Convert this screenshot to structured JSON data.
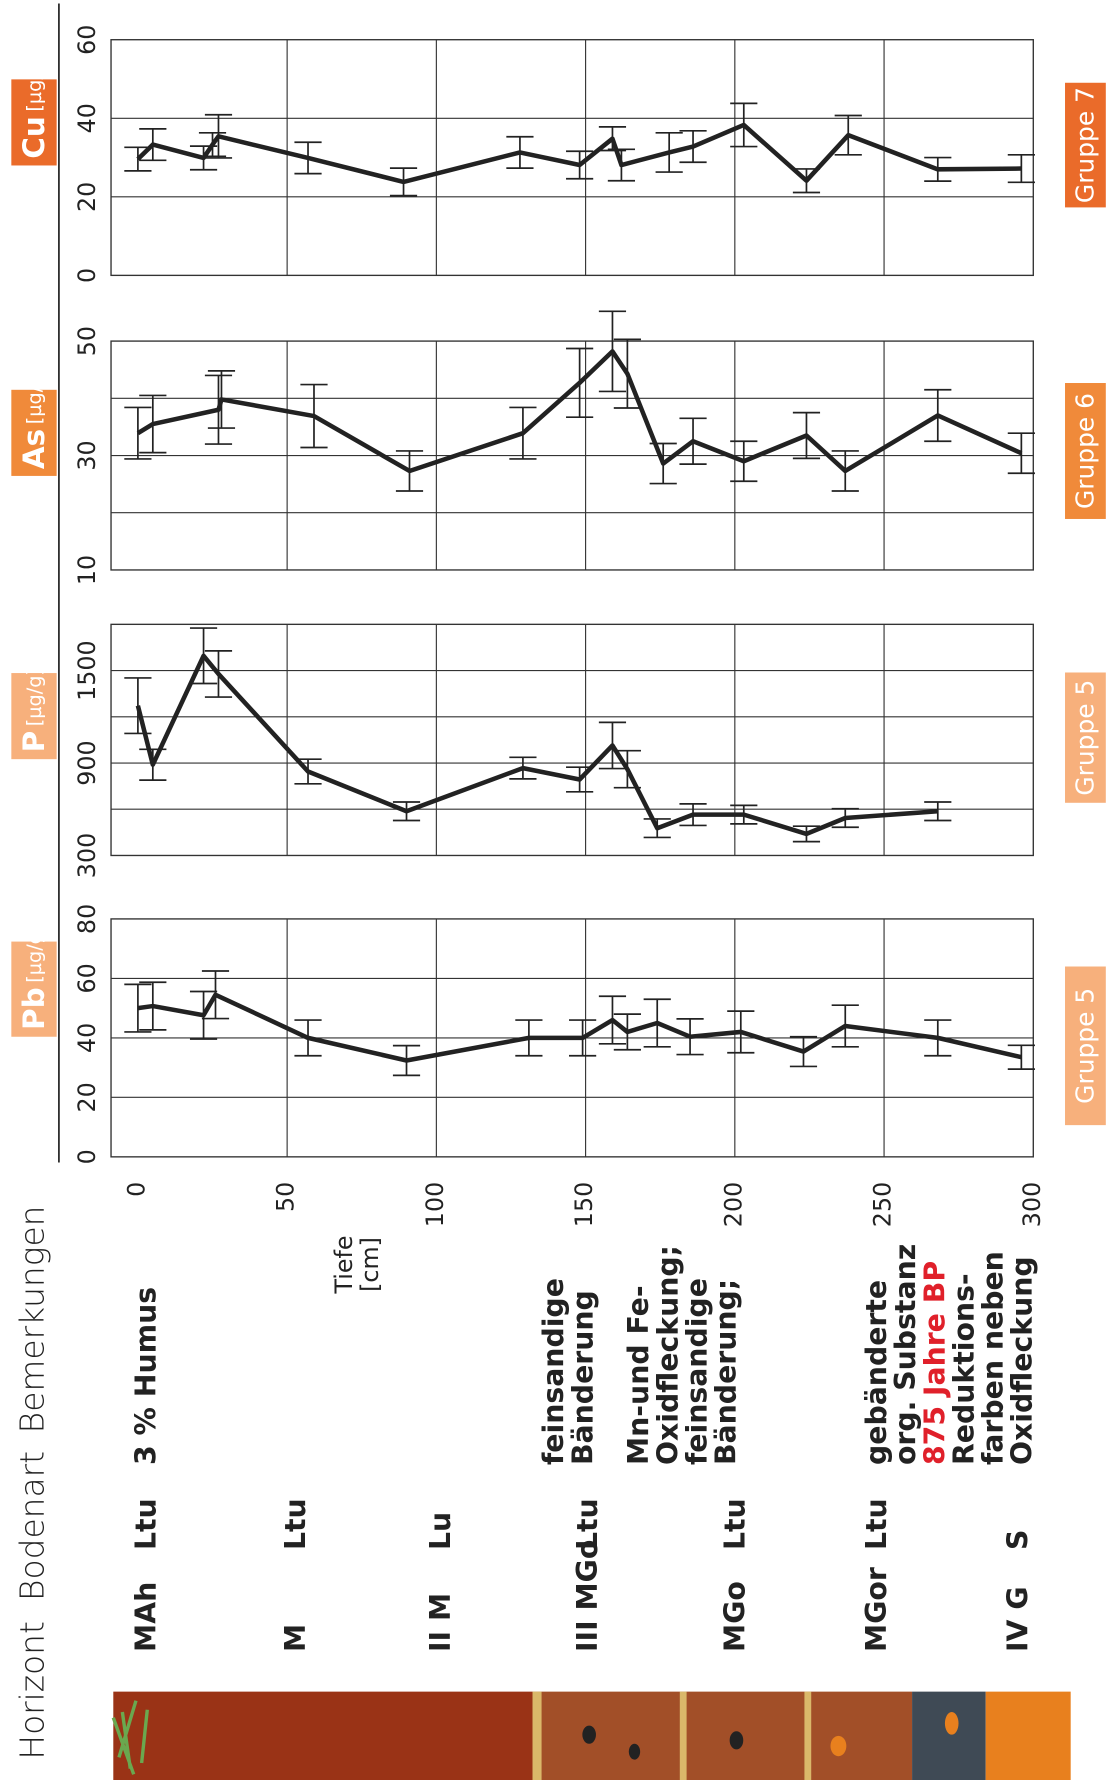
{
  "profile": {
    "headers": [
      "Horizont",
      "Bodenart",
      "Bemerkungen"
    ],
    "horizons": [
      "MAh",
      "M",
      "II M",
      "III MGo",
      "MGo",
      "MGor",
      "IV G"
    ],
    "bodenart": [
      "Ltu",
      "Ltu",
      "Lu",
      "Ltu",
      "Ltu",
      "Ltu",
      "S"
    ],
    "notes": [
      {
        "lines": [
          "3 % Humus"
        ]
      },
      {
        "lines": [
          "feinsandige",
          "Bänderung"
        ]
      },
      {
        "lines": [
          "Mn-und Fe-",
          "Oxidfleckung;",
          "feinsandige",
          "Bänderung;"
        ]
      },
      {
        "lines": [
          "gebänderte",
          "org. Substanz",
          "875 Jahre BP",
          "Reduktions-",
          "farben neben",
          "Oxidfleckung"
        ]
      }
    ]
  },
  "depth_axis": {
    "label": "Tiefe",
    "unit": "[cm]",
    "lim": [
      -9,
      300
    ],
    "ticks": [
      0,
      50,
      100,
      150,
      200,
      250,
      300
    ],
    "grid": [
      50,
      100,
      150,
      200,
      250
    ]
  },
  "chart_data": [
    {
      "type": "line",
      "title": "Pb",
      "unit": "[µg/g]",
      "group": "Gruppe 5",
      "box_color": "#f7b07c",
      "color": "#222",
      "ylim": [
        0,
        80
      ],
      "yticks": [
        0,
        20,
        40,
        60,
        80
      ],
      "ygrid": [
        20,
        40,
        60
      ],
      "x": [
        0,
        5,
        22,
        26,
        57,
        90,
        131,
        149,
        159,
        164,
        174,
        185,
        202,
        223,
        237,
        268,
        296
      ],
      "values": [
        50,
        50.7,
        47.6,
        54.5,
        40,
        32.4,
        40,
        40,
        46,
        42,
        45,
        40.4,
        42,
        35.4,
        44,
        40,
        33.5
      ],
      "errors": [
        8,
        8,
        8,
        8,
        6,
        5,
        6,
        6,
        8,
        6,
        8,
        6,
        7,
        5,
        7,
        6,
        4
      ]
    },
    {
      "type": "line",
      "title": "P",
      "unit": "[µg/g]",
      "group": "Gruppe 5",
      "box_color": "#f7b07c",
      "color": "#222",
      "ylim": [
        300,
        1800
      ],
      "yticks": [
        300,
        900,
        1500
      ],
      "ygrid": [
        600,
        900,
        1200,
        1500
      ],
      "x": [
        0,
        5,
        22,
        27,
        57,
        90,
        129,
        148,
        159,
        164,
        174,
        186,
        203,
        224,
        237,
        268
      ],
      "values": [
        1272,
        889,
        1596,
        1478,
        845,
        587,
        867,
        793,
        1014,
        860,
        477,
        565,
        565,
        440,
        543,
        587
      ],
      "errors": [
        180,
        100,
        180,
        150,
        80,
        60,
        70,
        80,
        150,
        120,
        60,
        70,
        60,
        50,
        60,
        60
      ]
    },
    {
      "type": "line",
      "title": "As",
      "unit": "[µg/g]",
      "group": "Gruppe 6",
      "box_color": "#f08a3a",
      "color": "#222",
      "ylim": [
        10,
        50
      ],
      "yticks": [
        10,
        30,
        50
      ],
      "ygrid": [
        20,
        30,
        40
      ],
      "x": [
        0,
        5,
        27,
        28,
        59,
        91,
        129,
        148,
        159,
        164,
        176,
        186,
        203,
        224,
        237,
        268,
        296
      ],
      "values": [
        33.9,
        35.5,
        38,
        39.8,
        36.9,
        27.3,
        33.9,
        42.7,
        48.2,
        44.3,
        28.6,
        32.5,
        29,
        33.5,
        27.3,
        37,
        30.4
      ],
      "errors": [
        4.5,
        5,
        6,
        5,
        5.5,
        3.5,
        4.5,
        6,
        7,
        6,
        3.5,
        4,
        3.5,
        4,
        3.5,
        4.5,
        3.5
      ]
    },
    {
      "type": "line",
      "title": "Cu",
      "unit": "[µg/g]",
      "group": "Gruppe 7",
      "box_color": "#ea6b2a",
      "color": "#222",
      "ylim": [
        0,
        60
      ],
      "yticks": [
        0,
        20,
        40,
        60
      ],
      "ygrid": [
        20,
        40
      ],
      "x": [
        0,
        5,
        22,
        25,
        27,
        57,
        89,
        128,
        148,
        159,
        162,
        178,
        186,
        203,
        224,
        238,
        268,
        296
      ],
      "values": [
        29.6,
        33.3,
        29.9,
        33.3,
        35.4,
        29.9,
        23.8,
        31.3,
        28.1,
        34.8,
        28.1,
        31.3,
        32.8,
        38.3,
        24.1,
        35.7,
        27,
        27.2
      ],
      "errors": [
        3,
        4,
        3,
        3,
        5.5,
        4,
        3.5,
        4,
        3.5,
        3,
        4,
        5,
        4,
        5.5,
        3,
        5,
        3,
        3.5
      ]
    }
  ]
}
